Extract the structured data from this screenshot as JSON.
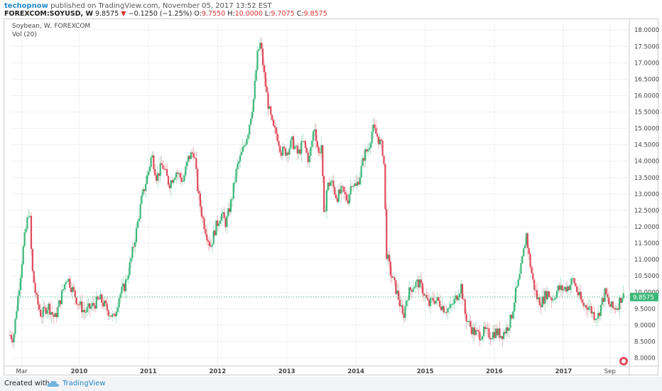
{
  "header": {
    "author": "techopnow",
    "published_text": "published on TradingView.com, November 05, 2017 13:52 EST",
    "symbol": "FOREXCOM:SOYUSD, W",
    "last": "9.8575",
    "change_arrow": "▼",
    "change": "−0.1250 (−1.25%)",
    "open_label": "O:",
    "open": "9.7550",
    "high_label": "H:",
    "high": "10.0000",
    "low_label": "L:",
    "low": "9.7075",
    "close_label": "C:",
    "close": "9.8575"
  },
  "legend": {
    "title": "Soybean, W, FOREXCOM",
    "indicator": "Vol (20)"
  },
  "footer": {
    "created_with": "Created with",
    "brand": "TradingView"
  },
  "colors": {
    "up": "#3cb878",
    "down": "#e04a5a",
    "last_price_tag": "#3cb878",
    "grid": "#eef0f3"
  },
  "chart_data": {
    "type": "candlestick",
    "title": "Soybean, W, FOREXCOM",
    "y_axis_side": "right",
    "ylim": [
      7.75,
      18.2
    ],
    "yticks": [
      "8.0000",
      "8.5000",
      "9.0000",
      "9.5000",
      "10.0000",
      "10.5000",
      "11.0000",
      "11.5000",
      "12.0000",
      "12.5000",
      "13.0000",
      "13.5000",
      "14.0000",
      "14.5000",
      "15.0000",
      "15.5000",
      "16.0000",
      "16.5000",
      "17.0000",
      "17.5000",
      "18.0000"
    ],
    "xlim": [
      2009.0,
      2017.95
    ],
    "xticks": [
      {
        "label": "Mar",
        "t": 2009.17
      },
      {
        "label": "2010",
        "t": 2010.0
      },
      {
        "label": "2011",
        "t": 2011.0
      },
      {
        "label": "2012",
        "t": 2012.0
      },
      {
        "label": "2013",
        "t": 2013.0
      },
      {
        "label": "2014",
        "t": 2014.0
      },
      {
        "label": "2015",
        "t": 2015.0
      },
      {
        "label": "2016",
        "t": 2016.0
      },
      {
        "label": "2017",
        "t": 2017.0
      },
      {
        "label": "Sep",
        "t": 2017.67
      }
    ],
    "last_price": 9.8575,
    "last_price_label": "9.8575",
    "price_path": [
      [
        2009.0,
        8.7
      ],
      [
        2009.05,
        8.6
      ],
      [
        2009.1,
        9.6
      ],
      [
        2009.15,
        10.5
      ],
      [
        2009.2,
        11.5
      ],
      [
        2009.28,
        12.6
      ],
      [
        2009.32,
        10.7
      ],
      [
        2009.38,
        9.8
      ],
      [
        2009.45,
        9.3
      ],
      [
        2009.55,
        9.6
      ],
      [
        2009.65,
        9.2
      ],
      [
        2009.72,
        9.7
      ],
      [
        2009.82,
        10.5
      ],
      [
        2009.9,
        10.1
      ],
      [
        2009.98,
        9.7
      ],
      [
        2010.08,
        9.4
      ],
      [
        2010.2,
        9.6
      ],
      [
        2010.3,
        9.8
      ],
      [
        2010.4,
        9.5
      ],
      [
        2010.5,
        9.2
      ],
      [
        2010.58,
        9.9
      ],
      [
        2010.66,
        10.2
      ],
      [
        2010.74,
        10.9
      ],
      [
        2010.82,
        11.8
      ],
      [
        2010.9,
        12.8
      ],
      [
        2011.0,
        13.7
      ],
      [
        2011.05,
        14.2
      ],
      [
        2011.12,
        13.5
      ],
      [
        2011.2,
        13.9
      ],
      [
        2011.3,
        13.3
      ],
      [
        2011.4,
        13.7
      ],
      [
        2011.5,
        13.4
      ],
      [
        2011.58,
        14.1
      ],
      [
        2011.66,
        14.3
      ],
      [
        2011.72,
        13.0
      ],
      [
        2011.78,
        12.3
      ],
      [
        2011.84,
        11.8
      ],
      [
        2011.9,
        11.4
      ],
      [
        2011.96,
        11.9
      ],
      [
        2012.05,
        12.4
      ],
      [
        2012.12,
        12.1
      ],
      [
        2012.2,
        12.8
      ],
      [
        2012.28,
        13.8
      ],
      [
        2012.36,
        14.3
      ],
      [
        2012.44,
        14.9
      ],
      [
        2012.52,
        15.9
      ],
      [
        2012.58,
        17.3
      ],
      [
        2012.62,
        17.6
      ],
      [
        2012.68,
        16.5
      ],
      [
        2012.74,
        15.6
      ],
      [
        2012.8,
        15.0
      ],
      [
        2012.86,
        14.8
      ],
      [
        2012.92,
        14.3
      ],
      [
        2013.0,
        14.3
      ],
      [
        2013.08,
        14.6
      ],
      [
        2013.16,
        14.2
      ],
      [
        2013.24,
        14.6
      ],
      [
        2013.32,
        14.0
      ],
      [
        2013.4,
        15.1
      ],
      [
        2013.46,
        14.2
      ],
      [
        2013.5,
        14.5
      ],
      [
        2013.54,
        12.2
      ],
      [
        2013.58,
        13.2
      ],
      [
        2013.64,
        13.4
      ],
      [
        2013.72,
        12.9
      ],
      [
        2013.8,
        13.1
      ],
      [
        2013.88,
        12.8
      ],
      [
        2013.94,
        13.4
      ],
      [
        2014.0,
        13.2
      ],
      [
        2014.06,
        13.6
      ],
      [
        2014.12,
        14.2
      ],
      [
        2014.18,
        14.4
      ],
      [
        2014.24,
        15.0
      ],
      [
        2014.3,
        14.8
      ],
      [
        2014.36,
        14.5
      ],
      [
        2014.4,
        14.2
      ],
      [
        2014.44,
        11.2
      ],
      [
        2014.5,
        10.6
      ],
      [
        2014.56,
        10.2
      ],
      [
        2014.62,
        9.8
      ],
      [
        2014.68,
        9.2
      ],
      [
        2014.74,
        9.9
      ],
      [
        2014.82,
        10.2
      ],
      [
        2014.9,
        10.3
      ],
      [
        2014.96,
        10.1
      ],
      [
        2015.05,
        9.6
      ],
      [
        2015.12,
        9.8
      ],
      [
        2015.2,
        9.7
      ],
      [
        2015.28,
        9.5
      ],
      [
        2015.36,
        9.5
      ],
      [
        2015.44,
        9.8
      ],
      [
        2015.52,
        10.2
      ],
      [
        2015.58,
        9.3
      ],
      [
        2015.64,
        9.0
      ],
      [
        2015.7,
        8.8
      ],
      [
        2015.78,
        8.7
      ],
      [
        2015.86,
        8.8
      ],
      [
        2015.94,
        8.7
      ],
      [
        2016.02,
        8.8
      ],
      [
        2016.1,
        8.7
      ],
      [
        2016.18,
        8.9
      ],
      [
        2016.24,
        9.2
      ],
      [
        2016.3,
        9.9
      ],
      [
        2016.36,
        10.4
      ],
      [
        2016.42,
        11.2
      ],
      [
        2016.46,
        11.8
      ],
      [
        2016.5,
        11.1
      ],
      [
        2016.56,
        10.3
      ],
      [
        2016.62,
        9.8
      ],
      [
        2016.68,
        9.7
      ],
      [
        2016.76,
        10.0
      ],
      [
        2016.84,
        9.8
      ],
      [
        2016.92,
        10.1
      ],
      [
        2017.0,
        10.1
      ],
      [
        2017.08,
        10.2
      ],
      [
        2017.14,
        10.4
      ],
      [
        2017.2,
        10.0
      ],
      [
        2017.28,
        9.6
      ],
      [
        2017.36,
        9.6
      ],
      [
        2017.44,
        9.3
      ],
      [
        2017.5,
        9.3
      ],
      [
        2017.54,
        9.6
      ],
      [
        2017.6,
        10.0
      ],
      [
        2017.66,
        9.6
      ],
      [
        2017.72,
        9.5
      ],
      [
        2017.78,
        9.6
      ],
      [
        2017.84,
        9.9
      ],
      [
        2017.88,
        9.86
      ]
    ]
  }
}
